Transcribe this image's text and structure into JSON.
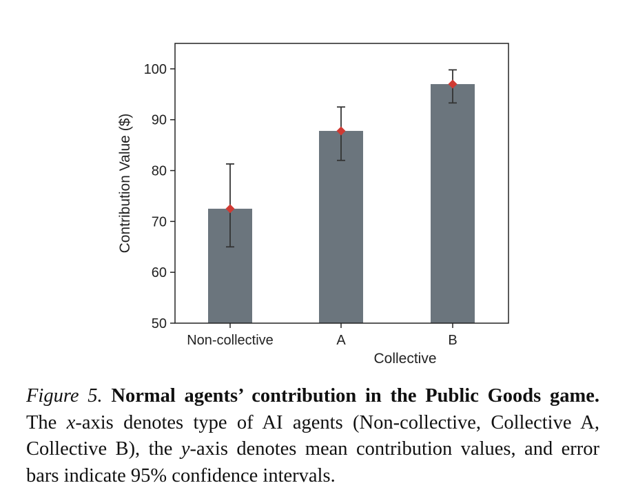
{
  "chart_data": {
    "type": "bar",
    "categories": [
      "Non-collective",
      "A",
      "B"
    ],
    "values": [
      72.5,
      87.8,
      97.0
    ],
    "error_low": [
      65.0,
      82.0,
      93.3
    ],
    "error_high": [
      81.3,
      92.5,
      99.8
    ],
    "ylabel": "Contribution Value ($)",
    "group_label": "Collective",
    "ylim": [
      50,
      105
    ],
    "yticks": [
      50,
      60,
      70,
      80,
      90,
      100
    ],
    "bar_color": "#6b757d",
    "marker_color": "#d03a33",
    "errorbar_color": "#333333",
    "grid": false,
    "legend": "none"
  },
  "caption": {
    "figure_label": "Figure 5.",
    "title": "Normal agents’ contribution in the Public Goods game.",
    "seg1": "The ",
    "x_var": "x",
    "seg2": "-axis denotes type of AI agents (Non-collective, Collective A, Collective B), the ",
    "y_var": "y",
    "seg3": "-axis denotes mean contribution values, and error bars indicate 95% confidence intervals."
  }
}
